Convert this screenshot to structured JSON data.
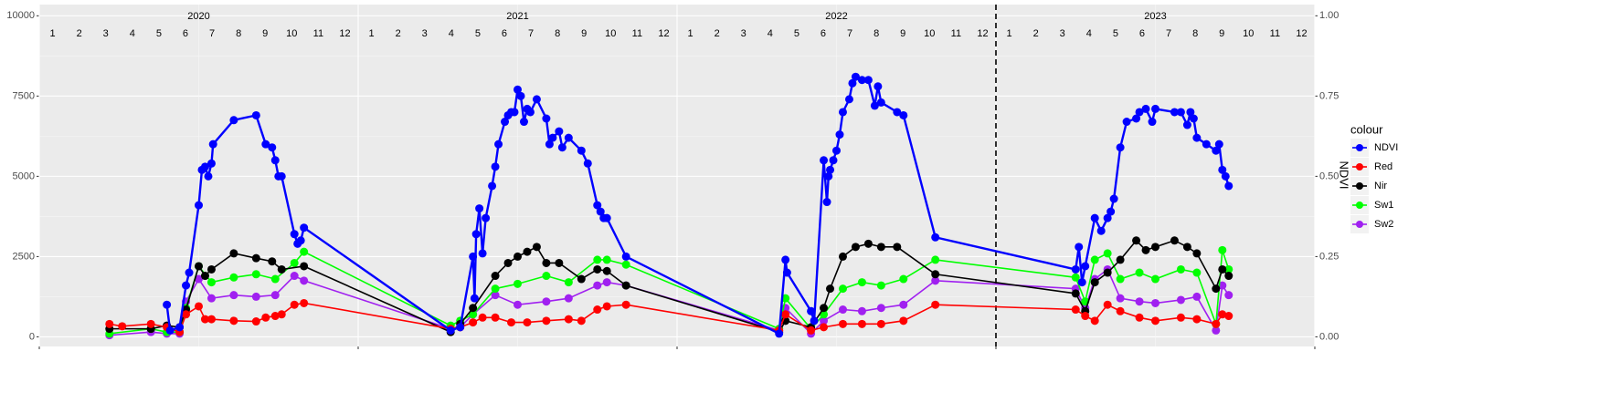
{
  "chart_data": {
    "type": "line",
    "xlim": [
      2020,
      2024
    ],
    "xticks": [
      2020,
      2021,
      2022,
      2023,
      2024
    ],
    "ylim": [
      -300,
      10350
    ],
    "yticks": [
      0,
      2500,
      5000,
      7500,
      10000
    ],
    "y2lim": [
      -0.03,
      1.035
    ],
    "y2ticks": [
      {
        "value": 0,
        "label": "0.00"
      },
      {
        "value": 0.25,
        "label": "0.25"
      },
      {
        "value": 0.5,
        "label": "0.50"
      },
      {
        "value": 0.75,
        "label": "0.75"
      },
      {
        "value": 1,
        "label": "1.00"
      }
    ],
    "y2_label": "NDVI",
    "grid": true,
    "vline": 2023,
    "year_labels": [
      "2020",
      "2021",
      "2022",
      "2023"
    ],
    "month_labels": [
      "1",
      "2",
      "3",
      "4",
      "5",
      "6",
      "7",
      "8",
      "9",
      "10",
      "11",
      "12"
    ],
    "legend_title": "colour",
    "legend_position": "right",
    "series": [
      {
        "name": "NDVI",
        "color": "#0000ff",
        "axis": "y2",
        "x": [
          2020.4,
          2020.41,
          2020.44,
          2020.46,
          2020.47,
          2020.5,
          2020.51,
          2020.52,
          2020.53,
          2020.54,
          2020.545,
          2020.61,
          2020.68,
          2020.71,
          2020.73,
          2020.74,
          2020.75,
          2020.76,
          2020.8,
          2020.81,
          2020.82,
          2020.83,
          2021.29,
          2021.32,
          2021.36,
          2021.365,
          2021.37,
          2021.38,
          2021.39,
          2021.4,
          2021.42,
          2021.43,
          2021.44,
          2021.46,
          2021.47,
          2021.48,
          2021.49,
          2021.5,
          2021.51,
          2021.52,
          2021.53,
          2021.54,
          2021.56,
          2021.59,
          2021.6,
          2021.61,
          2021.63,
          2021.64,
          2021.66,
          2021.7,
          2021.72,
          2021.75,
          2021.76,
          2021.77,
          2021.78,
          2021.84,
          2022.32,
          2022.34,
          2022.345,
          2022.42,
          2022.43,
          2022.46,
          2022.47,
          2022.475,
          2022.48,
          2022.49,
          2022.5,
          2022.51,
          2022.52,
          2022.54,
          2022.55,
          2022.56,
          2022.58,
          2022.6,
          2022.62,
          2022.63,
          2022.64,
          2022.69,
          2022.71,
          2022.81,
          2023.25,
          2023.26,
          2023.27,
          2023.28,
          2023.31,
          2023.33,
          2023.35,
          2023.36,
          2023.37,
          2023.39,
          2023.41,
          2023.44,
          2023.45,
          2023.47,
          2023.49,
          2023.5,
          2023.56,
          2023.58,
          2023.6,
          2023.61,
          2023.62,
          2023.63,
          2023.66,
          2023.69,
          2023.7,
          2023.71,
          2023.72,
          2023.73
        ],
        "values": [
          0.1,
          0.02,
          0.03,
          0.16,
          0.2,
          0.41,
          0.52,
          0.53,
          0.5,
          0.54,
          0.6,
          0.675,
          0.69,
          0.6,
          0.59,
          0.55,
          0.5,
          0.5,
          0.32,
          0.29,
          0.3,
          0.34,
          0.02,
          0.03,
          0.25,
          0.12,
          0.32,
          0.4,
          0.26,
          0.37,
          0.47,
          0.53,
          0.6,
          0.67,
          0.69,
          0.7,
          0.7,
          0.77,
          0.75,
          0.67,
          0.71,
          0.7,
          0.74,
          0.68,
          0.6,
          0.62,
          0.64,
          0.59,
          0.62,
          0.58,
          0.54,
          0.41,
          0.39,
          0.37,
          0.37,
          0.25,
          0.01,
          0.24,
          0.2,
          0.08,
          0.05,
          0.55,
          0.42,
          0.5,
          0.52,
          0.55,
          0.58,
          0.63,
          0.7,
          0.74,
          0.79,
          0.81,
          0.8,
          0.8,
          0.72,
          0.78,
          0.73,
          0.7,
          0.69,
          0.31,
          0.21,
          0.28,
          0.17,
          0.22,
          0.37,
          0.33,
          0.37,
          0.39,
          0.43,
          0.59,
          0.67,
          0.68,
          0.7,
          0.71,
          0.67,
          0.71,
          0.7,
          0.7,
          0.66,
          0.7,
          0.68,
          0.62,
          0.6,
          0.58,
          0.6,
          0.52,
          0.5,
          0.47
        ]
      },
      {
        "name": "Red",
        "color": "#ff0000",
        "x": [
          2020.22,
          2020.26,
          2020.35,
          2020.4,
          2020.44,
          2020.46,
          2020.5,
          2020.52,
          2020.54,
          2020.61,
          2020.68,
          2020.71,
          2020.74,
          2020.76,
          2020.8,
          2020.83,
          2021.29,
          2021.32,
          2021.36,
          2021.39,
          2021.43,
          2021.48,
          2021.53,
          2021.59,
          2021.66,
          2021.7,
          2021.75,
          2021.78,
          2021.84,
          2022.32,
          2022.34,
          2022.42,
          2022.46,
          2022.52,
          2022.58,
          2022.64,
          2022.71,
          2022.81,
          2023.25,
          2023.28,
          2023.31,
          2023.35,
          2023.39,
          2023.45,
          2023.5,
          2023.58,
          2023.63,
          2023.69,
          2023.71,
          2023.73
        ],
        "values": [
          400,
          330,
          400,
          300,
          150,
          700,
          950,
          550,
          550,
          500,
          480,
          600,
          650,
          700,
          1000,
          1050,
          250,
          300,
          450,
          600,
          600,
          450,
          450,
          500,
          550,
          500,
          850,
          950,
          1000,
          200,
          700,
          200,
          300,
          400,
          400,
          400,
          500,
          1000,
          850,
          650,
          500,
          1000,
          800,
          600,
          500,
          600,
          550,
          400,
          700,
          650
        ]
      },
      {
        "name": "Nir",
        "color": "#000000",
        "x": [
          2020.22,
          2020.35,
          2020.4,
          2020.44,
          2020.46,
          2020.5,
          2020.52,
          2020.54,
          2020.61,
          2020.68,
          2020.73,
          2020.76,
          2020.83,
          2021.29,
          2021.32,
          2021.36,
          2021.43,
          2021.47,
          2021.5,
          2021.53,
          2021.56,
          2021.59,
          2021.63,
          2021.7,
          2021.75,
          2021.78,
          2021.84,
          2022.32,
          2022.34,
          2022.42,
          2022.46,
          2022.48,
          2022.52,
          2022.56,
          2022.6,
          2022.64,
          2022.69,
          2022.81,
          2023.25,
          2023.28,
          2023.31,
          2023.35,
          2023.39,
          2023.44,
          2023.47,
          2023.5,
          2023.56,
          2023.6,
          2023.63,
          2023.69,
          2023.71,
          2023.73
        ],
        "values": [
          250,
          250,
          350,
          300,
          850,
          2200,
          1900,
          2100,
          2600,
          2450,
          2350,
          2100,
          2200,
          150,
          400,
          900,
          1900,
          2300,
          2500,
          2650,
          2800,
          2300,
          2300,
          1800,
          2100,
          2050,
          1600,
          150,
          500,
          300,
          900,
          1500,
          2500,
          2800,
          2900,
          2800,
          2800,
          1950,
          1350,
          800,
          1700,
          2000,
          2400,
          3000,
          2700,
          2800,
          3000,
          2800,
          2600,
          1500,
          2100,
          1900
        ]
      },
      {
        "name": "Sw1",
        "color": "#00ff00",
        "x": [
          2020.22,
          2020.35,
          2020.4,
          2020.44,
          2020.46,
          2020.5,
          2020.54,
          2020.61,
          2020.68,
          2020.74,
          2020.8,
          2020.83,
          2021.29,
          2021.32,
          2021.36,
          2021.43,
          2021.5,
          2021.59,
          2021.66,
          2021.75,
          2021.78,
          2021.84,
          2022.32,
          2022.34,
          2022.42,
          2022.46,
          2022.52,
          2022.58,
          2022.64,
          2022.71,
          2022.81,
          2023.25,
          2023.28,
          2023.31,
          2023.35,
          2023.39,
          2023.45,
          2023.5,
          2023.58,
          2023.63,
          2023.69,
          2023.71,
          2023.73
        ],
        "values": [
          100,
          250,
          150,
          150,
          900,
          2200,
          1700,
          1850,
          1950,
          1800,
          2300,
          2650,
          350,
          500,
          700,
          1500,
          1650,
          1900,
          1700,
          2400,
          2400,
          2250,
          250,
          1200,
          250,
          700,
          1500,
          1700,
          1600,
          1800,
          2400,
          1850,
          1100,
          2400,
          2600,
          1800,
          2000,
          1800,
          2100,
          2000,
          400,
          2700,
          2100
        ]
      },
      {
        "name": "Sw2",
        "color": "#a020f0",
        "x": [
          2020.22,
          2020.35,
          2020.4,
          2020.44,
          2020.46,
          2020.5,
          2020.54,
          2020.61,
          2020.68,
          2020.74,
          2020.8,
          2020.83,
          2021.29,
          2021.32,
          2021.36,
          2021.43,
          2021.5,
          2021.59,
          2021.66,
          2021.75,
          2021.78,
          2021.84,
          2022.32,
          2022.34,
          2022.42,
          2022.46,
          2022.52,
          2022.58,
          2022.64,
          2022.71,
          2022.81,
          2023.25,
          2023.28,
          2023.31,
          2023.35,
          2023.39,
          2023.45,
          2023.5,
          2023.58,
          2023.63,
          2023.69,
          2023.71,
          2023.73
        ],
        "values": [
          50,
          150,
          100,
          100,
          1100,
          1800,
          1200,
          1300,
          1250,
          1300,
          1900,
          1750,
          250,
          300,
          700,
          1300,
          1000,
          1100,
          1200,
          1600,
          1700,
          1600,
          200,
          900,
          100,
          500,
          850,
          800,
          900,
          1000,
          1750,
          1500,
          900,
          1800,
          2100,
          1200,
          1100,
          1050,
          1150,
          1250,
          200,
          1600,
          1300
        ]
      }
    ]
  }
}
